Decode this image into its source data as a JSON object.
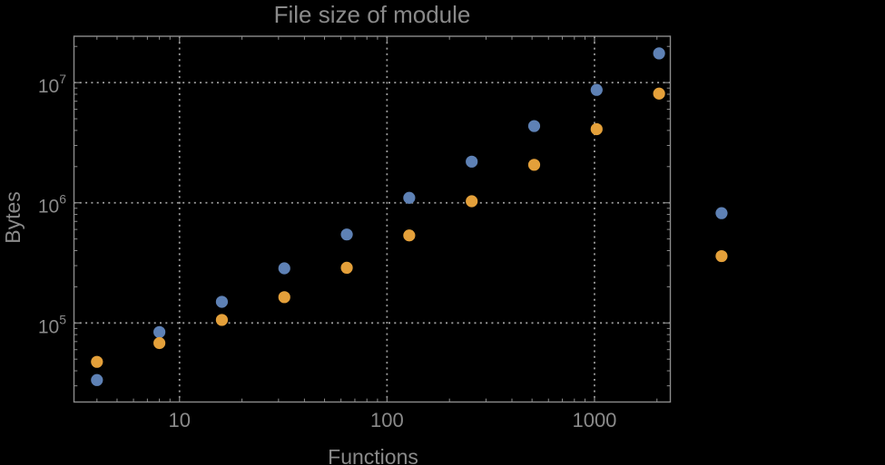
{
  "title": "File size of module",
  "colors": {
    "background": "#000000",
    "frame": "#8c8c8c",
    "grid": "#9b9b9b",
    "text": "#8a8a8a",
    "series_blue": "#5e81b5",
    "series_orange": "#e4a03a"
  },
  "chart_data": {
    "type": "scatter",
    "title": "File size of module",
    "xlabel": "Functions",
    "ylabel": "Bytes",
    "x_scale": "log",
    "y_scale": "log",
    "grid": "dotted lines at decade ticks",
    "legend": "none",
    "x": [
      4,
      8,
      16,
      32,
      64,
      128,
      256,
      512,
      1024,
      2048,
      4096
    ],
    "series": [
      {
        "name": "blue",
        "color": "#5e81b5",
        "values": [
          33500,
          84000,
          150000,
          285000,
          545000,
          1100000,
          2200000,
          4350000,
          8700000,
          17500000,
          820000
        ]
      },
      {
        "name": "orange",
        "color": "#e4a03a",
        "values": [
          47500,
          68000,
          106000,
          164000,
          288000,
          535000,
          1030000,
          2070000,
          4100000,
          8100000,
          360000
        ]
      }
    ],
    "x_ticks": [
      10,
      100,
      1000
    ],
    "x_tick_labels": [
      "10",
      "100",
      "1000"
    ],
    "y_ticks": [
      100000,
      1000000,
      10000000
    ],
    "y_tick_labels": [
      "10^5",
      "10^6",
      "10^7"
    ],
    "xlim": [
      3.1,
      2320
    ],
    "ylim": [
      22000,
      24300000
    ]
  }
}
